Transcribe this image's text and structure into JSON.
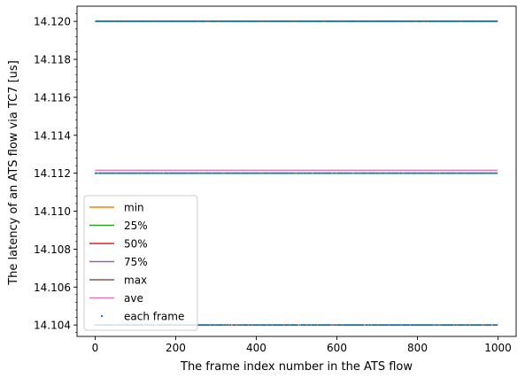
{
  "chart_data": {
    "type": "line",
    "title": "",
    "xlabel": "The frame index number in the ATS flow",
    "ylabel": "The latency of an ATS flow via TC7 [us]",
    "xlim": [
      -45,
      1045
    ],
    "ylim": [
      14.1034,
      14.1208
    ],
    "xticks": [
      0,
      200,
      400,
      600,
      800,
      1000
    ],
    "yticks": [
      14.104,
      14.106,
      14.108,
      14.11,
      14.112,
      14.114,
      14.116,
      14.118,
      14.12
    ],
    "ytick_labels": [
      "14.104",
      "14.106",
      "14.108",
      "14.110",
      "14.112",
      "14.114",
      "14.116",
      "14.118",
      "14.120"
    ],
    "y_minor_step": 0.0004,
    "grid": false,
    "legend_position": "lower-left",
    "series": [
      {
        "name": "min",
        "color": "#ff7f0e",
        "kind": "line",
        "x": [
          0,
          999
        ],
        "y": [
          14.104,
          14.104
        ]
      },
      {
        "name": "25%",
        "color": "#2ca02c",
        "kind": "line",
        "x": [
          0,
          999
        ],
        "y": [
          14.112,
          14.112
        ]
      },
      {
        "name": "50%",
        "color": "#d62728",
        "kind": "line",
        "x": [
          0,
          999
        ],
        "y": [
          14.12,
          14.12
        ]
      },
      {
        "name": "75%",
        "color": "#9467bd",
        "kind": "line",
        "x": [
          0,
          999
        ],
        "y": [
          14.12,
          14.12
        ]
      },
      {
        "name": "max",
        "color": "#8c564b",
        "kind": "line",
        "x": [
          0,
          999
        ],
        "y": [
          14.12,
          14.12
        ]
      },
      {
        "name": "ave",
        "color": "#e377c2",
        "kind": "line",
        "x": [
          0,
          999
        ],
        "y": [
          14.11215,
          14.11215
        ]
      },
      {
        "name": "each frame",
        "color": "#1f77b4",
        "kind": "scatter",
        "levels": [
          14.104,
          14.112,
          14.12
        ],
        "x_range": [
          0,
          999
        ],
        "description_levels_only": true
      }
    ]
  }
}
